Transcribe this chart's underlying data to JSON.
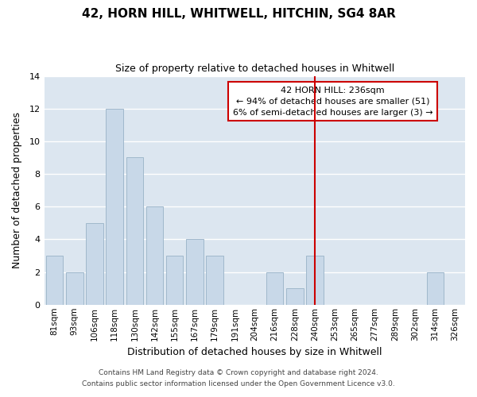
{
  "title": "42, HORN HILL, WHITWELL, HITCHIN, SG4 8AR",
  "subtitle": "Size of property relative to detached houses in Whitwell",
  "xlabel": "Distribution of detached houses by size in Whitwell",
  "ylabel": "Number of detached properties",
  "bar_labels": [
    "81sqm",
    "93sqm",
    "106sqm",
    "118sqm",
    "130sqm",
    "142sqm",
    "155sqm",
    "167sqm",
    "179sqm",
    "191sqm",
    "204sqm",
    "216sqm",
    "228sqm",
    "240sqm",
    "253sqm",
    "265sqm",
    "277sqm",
    "289sqm",
    "302sqm",
    "314sqm",
    "326sqm"
  ],
  "bar_values": [
    3,
    2,
    5,
    12,
    9,
    6,
    3,
    4,
    3,
    0,
    0,
    2,
    1,
    3,
    0,
    0,
    0,
    0,
    0,
    2,
    0
  ],
  "bar_color": "#c8d8e8",
  "bar_edge_color": "#a0b8cc",
  "vline_x": 13,
  "vline_color": "#cc0000",
  "annotation_title": "42 HORN HILL: 236sqm",
  "annotation_line1": "← 94% of detached houses are smaller (51)",
  "annotation_line2": "6% of semi-detached houses are larger (3) →",
  "annotation_box_color": "#ffffff",
  "annotation_border_color": "#cc0000",
  "ylim": [
    0,
    14
  ],
  "yticks": [
    0,
    2,
    4,
    6,
    8,
    10,
    12,
    14
  ],
  "footer1": "Contains HM Land Registry data © Crown copyright and database right 2024.",
  "footer2": "Contains public sector information licensed under the Open Government Licence v3.0.",
  "background_color": "#ffffff",
  "grid_color": "#ffffff",
  "plot_bg_color": "#dce6f0"
}
